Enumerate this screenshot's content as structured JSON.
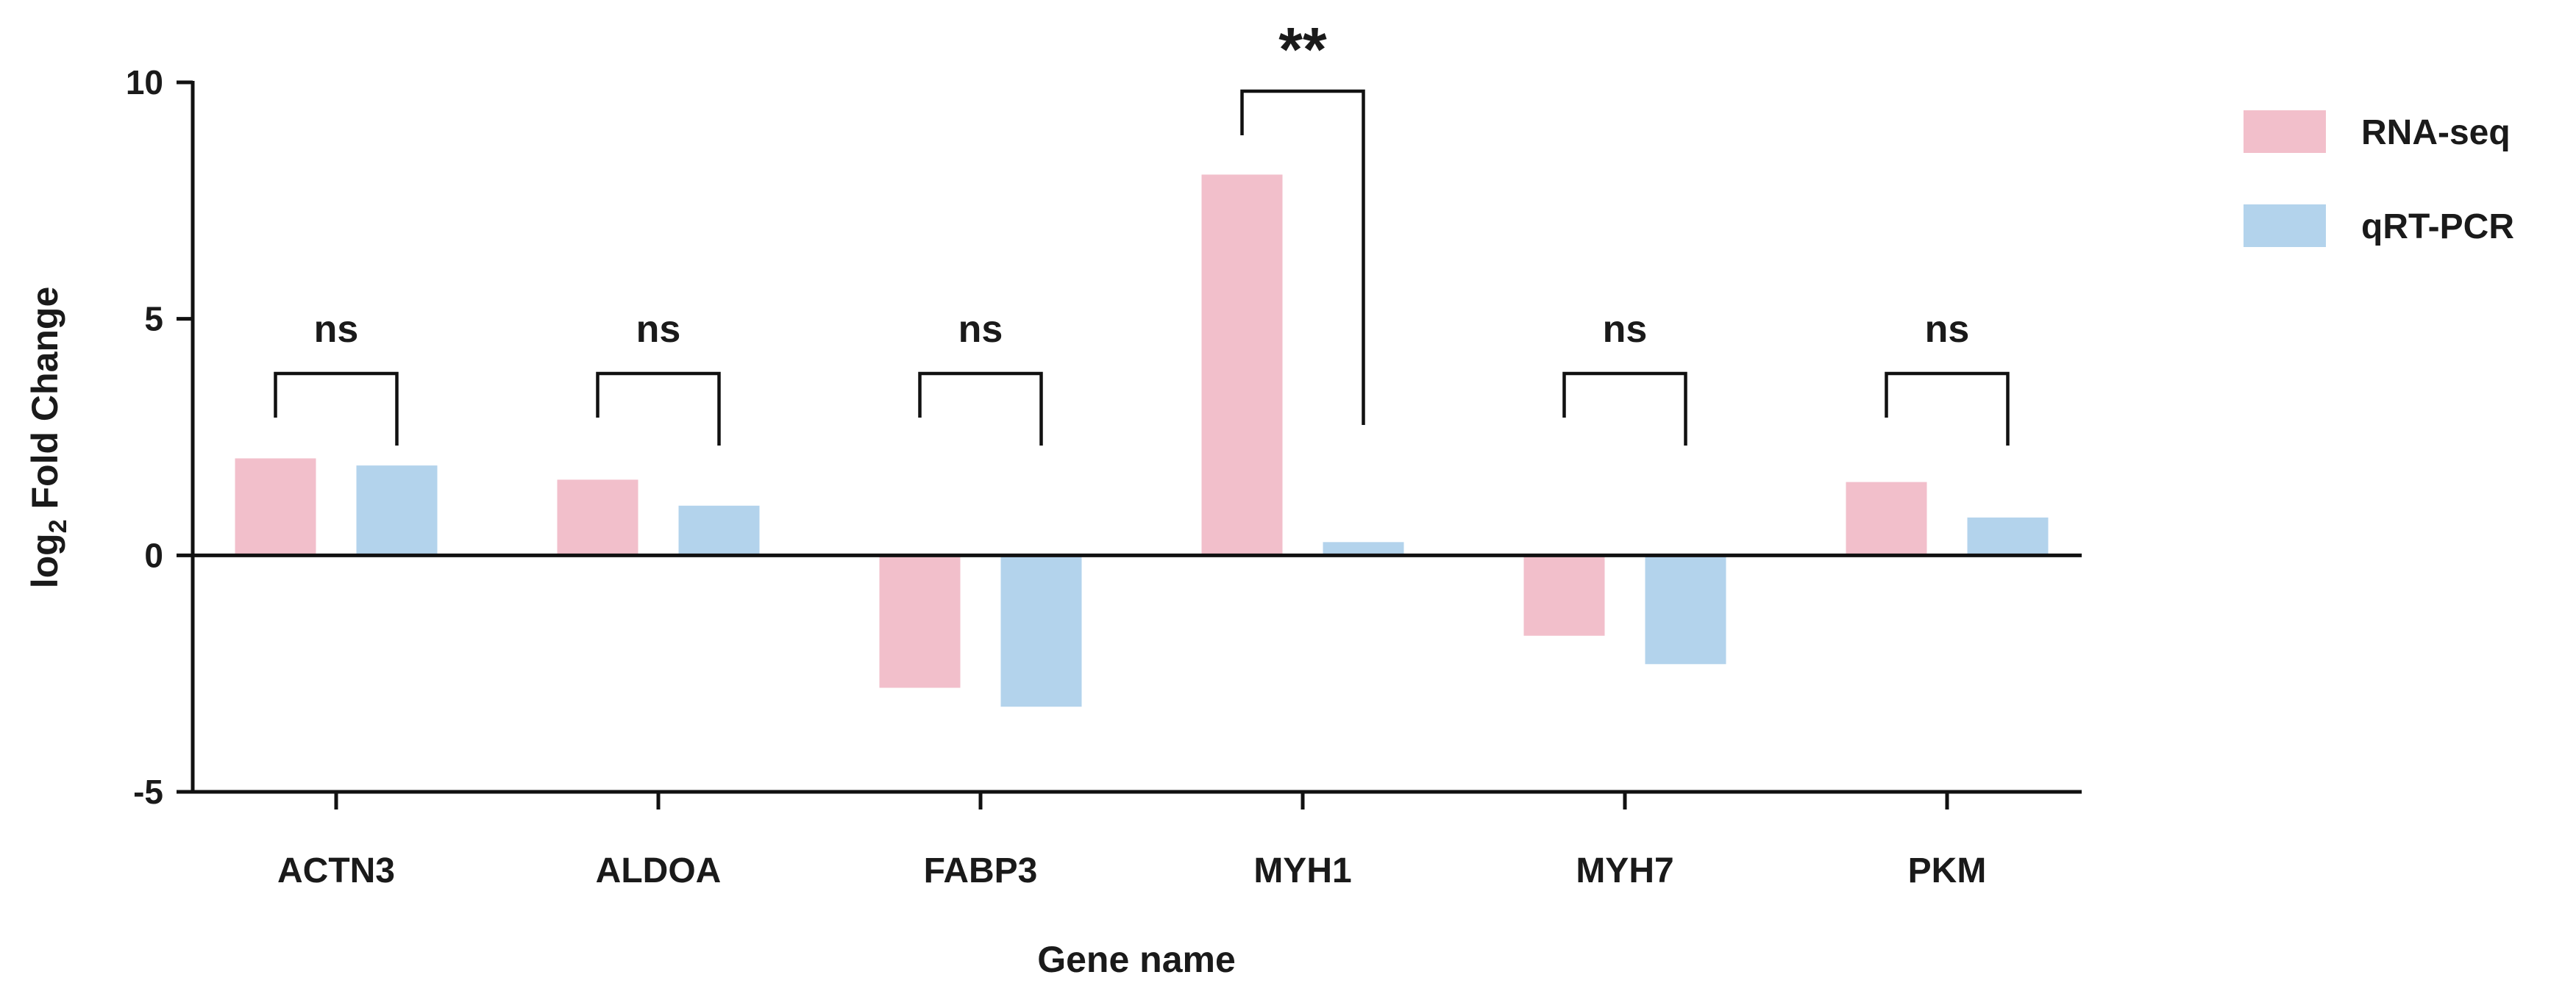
{
  "chart_data": {
    "type": "bar",
    "xlabel": "Gene name",
    "ylabel_prefix": "log",
    "ylabel_sub": "2",
    "ylabel_suffix": " Fold Change",
    "ylim": [
      -5,
      10
    ],
    "yticks": [
      -5,
      0,
      5,
      10
    ],
    "ytick_labels": [
      "-5",
      "0",
      "5",
      "10"
    ],
    "categories": [
      "ACTN3",
      "ALDOA",
      "FABP3",
      "MYH1",
      "MYH7",
      "PKM"
    ],
    "series": [
      {
        "name": "RNA-seq",
        "color": "#f2bfcb",
        "values": [
          2.05,
          1.6,
          -2.8,
          8.05,
          -1.7,
          1.55
        ]
      },
      {
        "name": "qRT-PCR",
        "color": "#b3d3ec",
        "values": [
          1.9,
          1.05,
          -3.2,
          0.28,
          -2.3,
          0.8
        ]
      }
    ],
    "significance": [
      "ns",
      "ns",
      "ns",
      "**",
      "ns",
      "ns"
    ],
    "legend_position": "top-right",
    "grid": false
  }
}
